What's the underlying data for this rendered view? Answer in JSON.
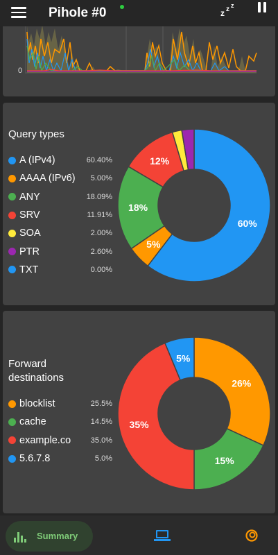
{
  "app": {
    "title": "Pihole #0",
    "status_color": "#2ecc40",
    "icons": [
      "menu-icon",
      "sleep-icon",
      "pause-icon"
    ]
  },
  "queries_over_time": {
    "y_axis_zero_label": "0"
  },
  "query_types": {
    "title": "Query types",
    "items": [
      {
        "name": "A (IPv4)",
        "value_label": "60.40%",
        "color": "#2196f3"
      },
      {
        "name": "AAAA (IPv6)",
        "value_label": "5.00%",
        "color": "#ff9800"
      },
      {
        "name": "ANY",
        "value_label": "18.09%",
        "color": "#4caf50"
      },
      {
        "name": "SRV",
        "value_label": "11.91%",
        "color": "#f44336"
      },
      {
        "name": "SOA",
        "value_label": "2.00%",
        "color": "#ffeb3b"
      },
      {
        "name": "PTR",
        "value_label": "2.60%",
        "color": "#9c27b0"
      },
      {
        "name": "TXT",
        "value_label": "0.00%",
        "color": "#2196f3"
      }
    ]
  },
  "forward_destinations": {
    "title": "Forward destinations",
    "items": [
      {
        "name": "blocklist",
        "value_label": "25.5%",
        "color": "#ff9800"
      },
      {
        "name": "cache",
        "value_label": "14.5%",
        "color": "#4caf50"
      },
      {
        "name": "example.co",
        "value_label": "35.0%",
        "color": "#f44336"
      },
      {
        "name": "5.6.7.8",
        "value_label": "5.0%",
        "color": "#2196f3"
      }
    ]
  },
  "chart_data": [
    {
      "type": "pie",
      "title": "Query types",
      "categories": [
        "A (IPv4)",
        "AAAA (IPv6)",
        "ANY",
        "SRV",
        "SOA",
        "PTR",
        "TXT"
      ],
      "values": [
        60.4,
        5.0,
        18.09,
        11.91,
        2.0,
        2.6,
        0.0
      ],
      "colors": [
        "#2196f3",
        "#ff9800",
        "#4caf50",
        "#f44336",
        "#ffeb3b",
        "#9c27b0",
        "#2196f3"
      ],
      "slice_labels": [
        "60%",
        "5%",
        "18%",
        "12%",
        "",
        "",
        ""
      ],
      "start_angle_deg": 90,
      "direction": "clockwise"
    },
    {
      "type": "pie",
      "title": "Forward destinations",
      "categories": [
        "blocklist",
        "cache",
        "example.co",
        "5.6.7.8"
      ],
      "values": [
        25.5,
        14.5,
        35.0,
        5.0
      ],
      "colors": [
        "#ff9800",
        "#4caf50",
        "#f44336",
        "#2196f3"
      ],
      "slice_labels": [
        "26%",
        "15%",
        "35%",
        "5%"
      ],
      "start_angle_deg": 90,
      "direction": "clockwise"
    }
  ],
  "bottom_nav": {
    "summary_label": "Summary",
    "accent": "#7fcc78",
    "active_bg": "#30422f",
    "clients_color": "#2196f3",
    "settings_color": "#ff9800"
  }
}
